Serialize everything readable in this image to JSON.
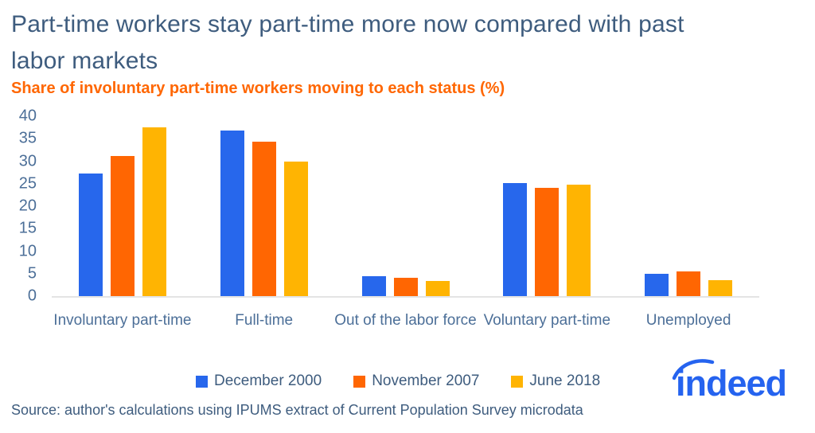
{
  "header": {
    "title_line1": "Part-time workers stay part-time more now compared with past",
    "title_line2": "labor markets",
    "subtitle": "Share of involuntary part-time workers moving to each status (%)"
  },
  "chart_data": {
    "type": "bar",
    "title": "Part-time workers stay part-time more now compared with past labor markets",
    "subtitle": "Share of involuntary part-time workers moving to each status (%)",
    "categories": [
      "Involuntary part-time",
      "Full-time",
      "Out of the labor force",
      "Voluntary part-time",
      "Unemployed"
    ],
    "series": [
      {
        "name": "December 2000",
        "color": "#2767EC",
        "values": [
          27.3,
          36.9,
          4.4,
          25.2,
          5.0
        ]
      },
      {
        "name": "November 2007",
        "color": "#FF6602",
        "values": [
          31.2,
          34.4,
          4.0,
          24.1,
          5.4
        ]
      },
      {
        "name": "June 2018",
        "color": "#FFB402",
        "values": [
          37.5,
          30.0,
          3.4,
          24.8,
          3.5
        ]
      }
    ],
    "xlabel": "",
    "ylabel": "",
    "ylim": [
      0,
      40
    ],
    "ytick_step": 5,
    "yticks": [
      0,
      5,
      10,
      15,
      20,
      25,
      30,
      35,
      40
    ],
    "grid": false,
    "legend_position": "bottom"
  },
  "footer": {
    "source": "Source: author's calculations using IPUMS extract of Current Population Survey microdata",
    "logo_text": "indeed"
  },
  "colors": {
    "title": "#3E5C7E",
    "subtitle": "#FF6703",
    "axis_text": "#4C6F98",
    "axis_line": "#E4E4E4",
    "legend_text": "#3E5C7E",
    "logo": "#2563EF",
    "background": "#FFFFFF"
  }
}
